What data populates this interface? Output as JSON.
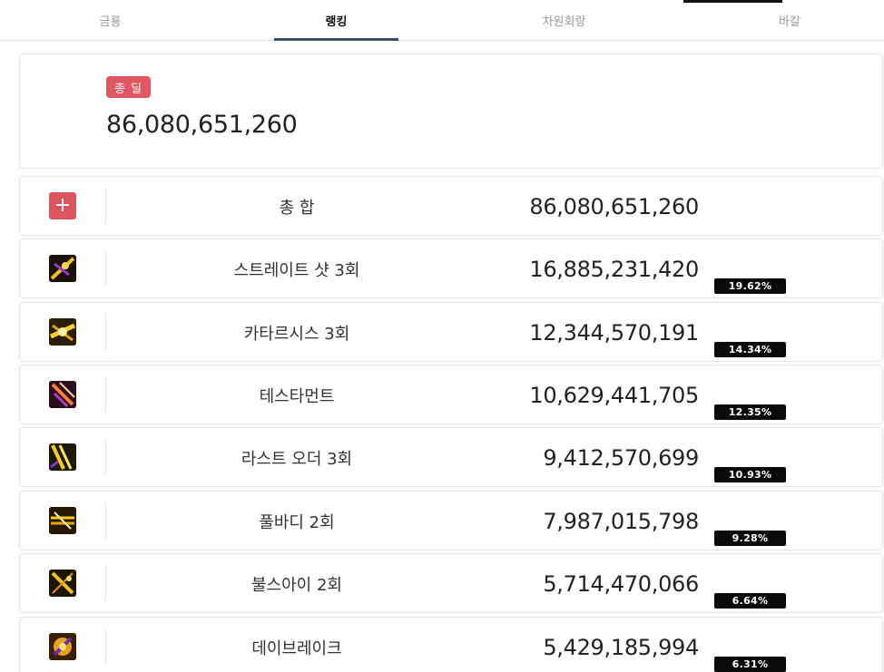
{
  "tabs": [
    {
      "label": "금룡"
    },
    {
      "label": "랭킹"
    },
    {
      "label": "차원회랑"
    },
    {
      "label": "바칼"
    }
  ],
  "summary": {
    "badge": "총 딜",
    "total": "86,080,651,260"
  },
  "rows": [
    {
      "icon": "plus-icon",
      "name": "총 합",
      "value": "86,080,651,260",
      "percent": ""
    },
    {
      "icon": "straight-shot-skill-icon",
      "name": "스트레이트 샷 3회",
      "value": "16,885,231,420",
      "percent": "19.62%"
    },
    {
      "icon": "catharsis-skill-icon",
      "name": "카타르시스 3회",
      "value": "12,344,570,191",
      "percent": "14.34%"
    },
    {
      "icon": "testament-skill-icon",
      "name": "테스타먼트",
      "value": "10,629,441,705",
      "percent": "12.35%"
    },
    {
      "icon": "last-order-skill-icon",
      "name": "라스트 오더 3회",
      "value": "9,412,570,699",
      "percent": "10.93%"
    },
    {
      "icon": "full-body-skill-icon",
      "name": "풀바디 2회",
      "value": "7,987,015,798",
      "percent": "9.28%"
    },
    {
      "icon": "bulls-eye-skill-icon",
      "name": "불스아이 2회",
      "value": "5,714,470,066",
      "percent": "6.64%"
    },
    {
      "icon": "daybreak-skill-icon",
      "name": "데이브레이크",
      "value": "5,429,185,994",
      "percent": "6.31%"
    }
  ],
  "colors": {
    "accent_badge": "#e05661",
    "tab_underline": "#3b4d6b",
    "percent_tag": "#0a0a0a"
  }
}
